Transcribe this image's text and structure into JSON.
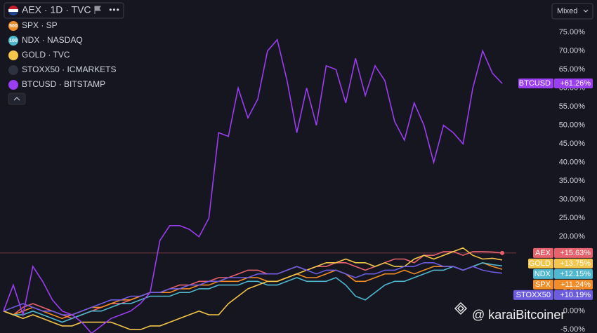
{
  "chart_data": {
    "type": "line",
    "header": "AEX · 1D · TVC",
    "scale_mode": "Mixed",
    "watermark": "@ karaiBitcoiner",
    "ylim": [
      -5.9,
      83.7
    ],
    "yticks": [
      {
        "value": -5,
        "label": "-5.00%"
      },
      {
        "value": 0,
        "label": "0.00%"
      },
      {
        "value": 5,
        "label": "5.00%"
      },
      {
        "value": 10,
        "label": "10.00%"
      },
      {
        "value": 15,
        "label": "15.00%"
      },
      {
        "value": 20,
        "label": "20.00%"
      },
      {
        "value": 25,
        "label": "25.00%"
      },
      {
        "value": 30,
        "label": "30.00%"
      },
      {
        "value": 35,
        "label": "35.00%"
      },
      {
        "value": 40,
        "label": "40.00%"
      },
      {
        "value": 45,
        "label": "45.00%"
      },
      {
        "value": 50,
        "label": "50.00%"
      },
      {
        "value": 55,
        "label": "55.00%"
      },
      {
        "value": 60,
        "label": "60.00%"
      },
      {
        "value": 65,
        "label": "65.00%"
      },
      {
        "value": 70,
        "label": "70.00%"
      },
      {
        "value": 75,
        "label": "75.00%"
      }
    ],
    "grid": false,
    "series": [
      {
        "name": "AEX",
        "color": "#e8626d",
        "values": [
          0,
          -1,
          1,
          2,
          1,
          0,
          -1,
          -2,
          -1,
          0,
          1,
          2,
          2,
          3,
          4,
          5,
          5,
          6,
          7,
          7,
          8,
          8,
          9,
          9,
          10,
          11,
          11,
          10,
          10,
          11,
          12,
          11,
          12,
          12,
          13,
          13,
          12,
          11,
          12,
          13,
          14,
          14,
          13,
          15,
          15,
          16,
          16,
          15,
          16,
          16,
          15.9,
          15.63
        ],
        "value_labels": [
          null,
          null,
          null,
          null,
          null,
          null,
          null,
          null,
          null,
          null,
          null,
          null,
          null,
          null,
          null,
          null,
          null,
          null,
          null,
          null,
          null,
          null,
          null,
          null,
          null,
          null,
          null,
          null,
          null,
          null,
          null,
          null,
          null,
          null,
          null,
          null,
          null,
          null,
          null,
          null,
          null,
          null,
          null,
          null,
          null,
          null,
          null,
          null,
          null,
          null,
          null,
          "+15.63%"
        ]
      },
      {
        "name": "SPX",
        "legend_label": "SPX · SP",
        "icon_text": "500",
        "color": "#f28c28",
        "values": [
          0,
          -1,
          0,
          1,
          0,
          -1,
          -2,
          -1,
          0,
          1,
          1,
          2,
          3,
          3,
          4,
          5,
          5,
          5,
          6,
          6,
          7,
          7,
          8,
          8,
          8,
          9,
          9,
          8,
          8,
          9,
          10,
          9,
          9,
          10,
          11,
          10,
          8,
          8,
          9,
          10,
          10,
          11,
          10,
          11,
          12,
          12,
          12,
          11,
          12,
          13,
          12,
          11.24
        ],
        "value_labels": [
          null,
          null,
          null,
          null,
          null,
          null,
          null,
          null,
          null,
          null,
          null,
          null,
          null,
          null,
          null,
          null,
          null,
          null,
          null,
          null,
          null,
          null,
          null,
          null,
          null,
          null,
          null,
          null,
          null,
          null,
          null,
          null,
          null,
          null,
          null,
          null,
          null,
          null,
          null,
          null,
          null,
          null,
          null,
          null,
          null,
          null,
          null,
          null,
          null,
          null,
          null,
          "+11.24%"
        ]
      },
      {
        "name": "NDX",
        "legend_label": "NDX · NASDAQ",
        "icon_text": "100",
        "color": "#4fb7d0",
        "values": [
          0,
          -1,
          -1,
          0,
          -1,
          -2,
          -3,
          -2,
          -1,
          0,
          0,
          1,
          2,
          2,
          3,
          4,
          4,
          4,
          5,
          5,
          6,
          6,
          7,
          7,
          7,
          8,
          8,
          7,
          7,
          8,
          9,
          8,
          8,
          8,
          9,
          7,
          4,
          3,
          5,
          7,
          8,
          8,
          9,
          10,
          11,
          11,
          12,
          11,
          12,
          13,
          12.5,
          12.15
        ],
        "value_labels": [
          null,
          null,
          null,
          null,
          null,
          null,
          null,
          null,
          null,
          null,
          null,
          null,
          null,
          null,
          null,
          null,
          null,
          null,
          null,
          null,
          null,
          null,
          null,
          null,
          null,
          null,
          null,
          null,
          null,
          null,
          null,
          null,
          null,
          null,
          null,
          null,
          null,
          null,
          null,
          null,
          null,
          null,
          null,
          null,
          null,
          null,
          null,
          null,
          null,
          null,
          null,
          "+12.15%"
        ]
      },
      {
        "name": "GOLD",
        "legend_label": "GOLD · TVC",
        "color": "#f4c54b",
        "values": [
          0,
          -1,
          -2,
          -1,
          -2,
          -3,
          -4,
          -4,
          -3,
          -3,
          -3,
          -3,
          -4,
          -5,
          -5,
          -4,
          -4,
          -3,
          -2,
          -1,
          0,
          -1,
          -1,
          2,
          4,
          6,
          7,
          8,
          8,
          9,
          10,
          11,
          12,
          13,
          13,
          14,
          13,
          13,
          12,
          13,
          12,
          12,
          14,
          15,
          14,
          15,
          16,
          17,
          15,
          14,
          14.2,
          13.75
        ],
        "value_labels": [
          null,
          null,
          null,
          null,
          null,
          null,
          null,
          null,
          null,
          null,
          null,
          null,
          null,
          null,
          null,
          null,
          null,
          null,
          null,
          null,
          null,
          null,
          null,
          null,
          null,
          null,
          null,
          null,
          null,
          null,
          null,
          null,
          null,
          null,
          null,
          null,
          null,
          null,
          null,
          null,
          null,
          null,
          null,
          null,
          null,
          null,
          null,
          null,
          null,
          null,
          null,
          "+13.75%"
        ]
      },
      {
        "name": "STOXX50",
        "legend_label": "STOXX50 · ICMARKETS",
        "color": "#6d5be0",
        "values": [
          0,
          1,
          2,
          1,
          0,
          0,
          -1,
          -1,
          0,
          1,
          2,
          3,
          3,
          4,
          4,
          5,
          5,
          6,
          6,
          7,
          7,
          8,
          8,
          9,
          9,
          9,
          10,
          10,
          10,
          11,
          12,
          11,
          10,
          11,
          11,
          10,
          9,
          10,
          10,
          11,
          11,
          12,
          12,
          13,
          13,
          12,
          12,
          11,
          12,
          11,
          10.5,
          10.19
        ],
        "value_labels": [
          null,
          null,
          null,
          null,
          null,
          null,
          null,
          null,
          null,
          null,
          null,
          null,
          null,
          null,
          null,
          null,
          null,
          null,
          null,
          null,
          null,
          null,
          null,
          null,
          null,
          null,
          null,
          null,
          null,
          null,
          null,
          null,
          null,
          null,
          null,
          null,
          null,
          null,
          null,
          null,
          null,
          null,
          null,
          null,
          null,
          null,
          null,
          null,
          null,
          null,
          null,
          "+10.19%"
        ]
      },
      {
        "name": "BTCUSD",
        "legend_label": "BTCUSD · BITSTAMP",
        "color": "#9b3df0",
        "values": [
          0,
          7,
          -1,
          12,
          8,
          3,
          0,
          -1,
          -3,
          -6,
          -4,
          -2,
          -1,
          0,
          2,
          5,
          19,
          23,
          23,
          22,
          20,
          25,
          48,
          47,
          60,
          52,
          57,
          70,
          73,
          62,
          48,
          60,
          50,
          66,
          65,
          56,
          68,
          58,
          66,
          62,
          51,
          46,
          56,
          50,
          40,
          50,
          48,
          45,
          60,
          70,
          64,
          61.26
        ],
        "value_labels": [
          null,
          null,
          null,
          null,
          null,
          null,
          null,
          null,
          null,
          null,
          null,
          null,
          null,
          null,
          null,
          null,
          null,
          null,
          null,
          null,
          null,
          null,
          null,
          null,
          null,
          null,
          null,
          null,
          null,
          null,
          null,
          null,
          null,
          null,
          null,
          null,
          null,
          null,
          null,
          null,
          null,
          null,
          null,
          null,
          null,
          null,
          null,
          null,
          null,
          null,
          null,
          "+61.26%"
        ]
      }
    ]
  }
}
